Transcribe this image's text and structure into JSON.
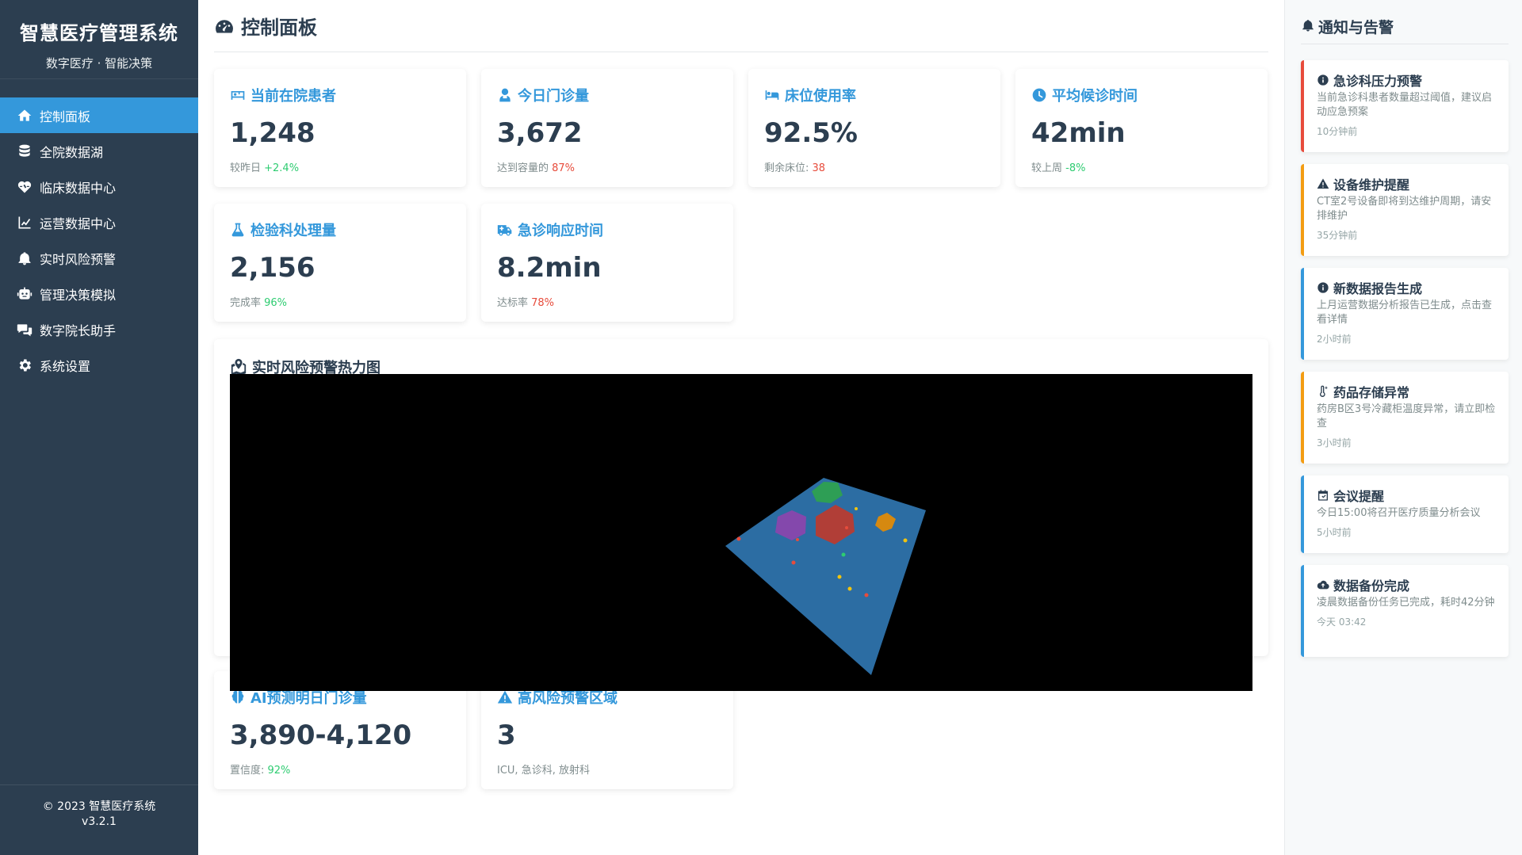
{
  "sidebar": {
    "title": "智慧医疗管理系统",
    "subtitle": "数字医疗 · 智能决策",
    "items": [
      {
        "label": "控制面板",
        "icon": "home-icon"
      },
      {
        "label": "全院数据湖",
        "icon": "database-icon"
      },
      {
        "label": "临床数据中心",
        "icon": "heartbeat-icon"
      },
      {
        "label": "运营数据中心",
        "icon": "line-chart-icon"
      },
      {
        "label": "实时风险预警",
        "icon": "bell-icon"
      },
      {
        "label": "管理决策模拟",
        "icon": "robot-icon"
      },
      {
        "label": "数字院长助手",
        "icon": "chat-icon"
      },
      {
        "label": "系统设置",
        "icon": "gear-icon"
      }
    ],
    "footer_line1": "© 2023 智慧医疗系统",
    "footer_line2": "v3.2.1"
  },
  "main": {
    "title": "控制面板",
    "cards": [
      {
        "title": "当前在院患者",
        "icon": "hospital-bed-card-icon",
        "value": "1,248",
        "note_prefix": "较昨日 ",
        "note_value": "+2.4%",
        "note_color": "#2ecc71"
      },
      {
        "title": "今日门诊量",
        "icon": "user-doctor-icon",
        "value": "3,672",
        "note_prefix": "达到容量的 ",
        "note_value": "87%",
        "note_color": "#e74c3c"
      },
      {
        "title": "床位使用率",
        "icon": "bed-icon",
        "value": "92.5%",
        "note_prefix": "剩余床位: ",
        "note_value": "38",
        "note_color": "#e74c3c"
      },
      {
        "title": "平均候诊时间",
        "icon": "clock-icon",
        "value": "42min",
        "note_prefix": "较上周 ",
        "note_value": "-8%",
        "note_color": "#2ecc71"
      },
      {
        "title": "检验科处理量",
        "icon": "flask-icon",
        "value": "2,156",
        "note_prefix": "完成率 ",
        "note_value": "96%",
        "note_color": "#2ecc71"
      },
      {
        "title": "急诊响应时间",
        "icon": "ambulance-icon",
        "value": "8.2min",
        "note_prefix": "达标率 ",
        "note_value": "78%",
        "note_color": "#e74c3c"
      }
    ],
    "heatmap_title": "实时风险预警热力图",
    "bottom_cards": [
      {
        "title": "AI预测明日门诊量",
        "icon": "brain-icon",
        "value": "3,890-4,120",
        "note_prefix": "置信度: ",
        "note_value": "92%",
        "note_color": "#2ecc71"
      },
      {
        "title": "高风险预警区域",
        "icon": "warning-icon",
        "value": "3",
        "note_prefix": "ICU, 急诊科, 放射科",
        "note_value": "",
        "note_color": "#7f8c8d"
      }
    ]
  },
  "notifications": {
    "title": "通知与告警",
    "items": [
      {
        "title": "急诊科压力预警",
        "icon": "info-circle-icon",
        "body": "当前急诊科患者数量超过阈值，建议启动应急预案",
        "time": "10分钟前",
        "color": "#e74c3c"
      },
      {
        "title": "设备维护提醒",
        "icon": "warning-icon",
        "body": "CT室2号设备即将到达维护周期，请安排维护",
        "time": "35分钟前",
        "color": "#f39c12"
      },
      {
        "title": "新数据报告生成",
        "icon": "info-circle-icon",
        "body": "上月运营数据分析报告已生成，点击查看详情",
        "time": "2小时前",
        "color": "#3498db"
      },
      {
        "title": "药品存储异常",
        "icon": "thermometer-icon",
        "body": "药房B区3号冷藏柜温度异常，请立即检查",
        "time": "3小时前",
        "color": "#f39c12"
      },
      {
        "title": "会议提醒",
        "icon": "calendar-icon",
        "body": "今日15:00将召开医疗质量分析会议",
        "time": "5小时前",
        "color": "#3498db"
      },
      {
        "title": "数据备份完成",
        "icon": "cloud-upload-icon",
        "body": "凌晨数据备份任务已完成，耗时42分钟",
        "time": "今天 03:42",
        "color": "#3498db"
      }
    ]
  }
}
